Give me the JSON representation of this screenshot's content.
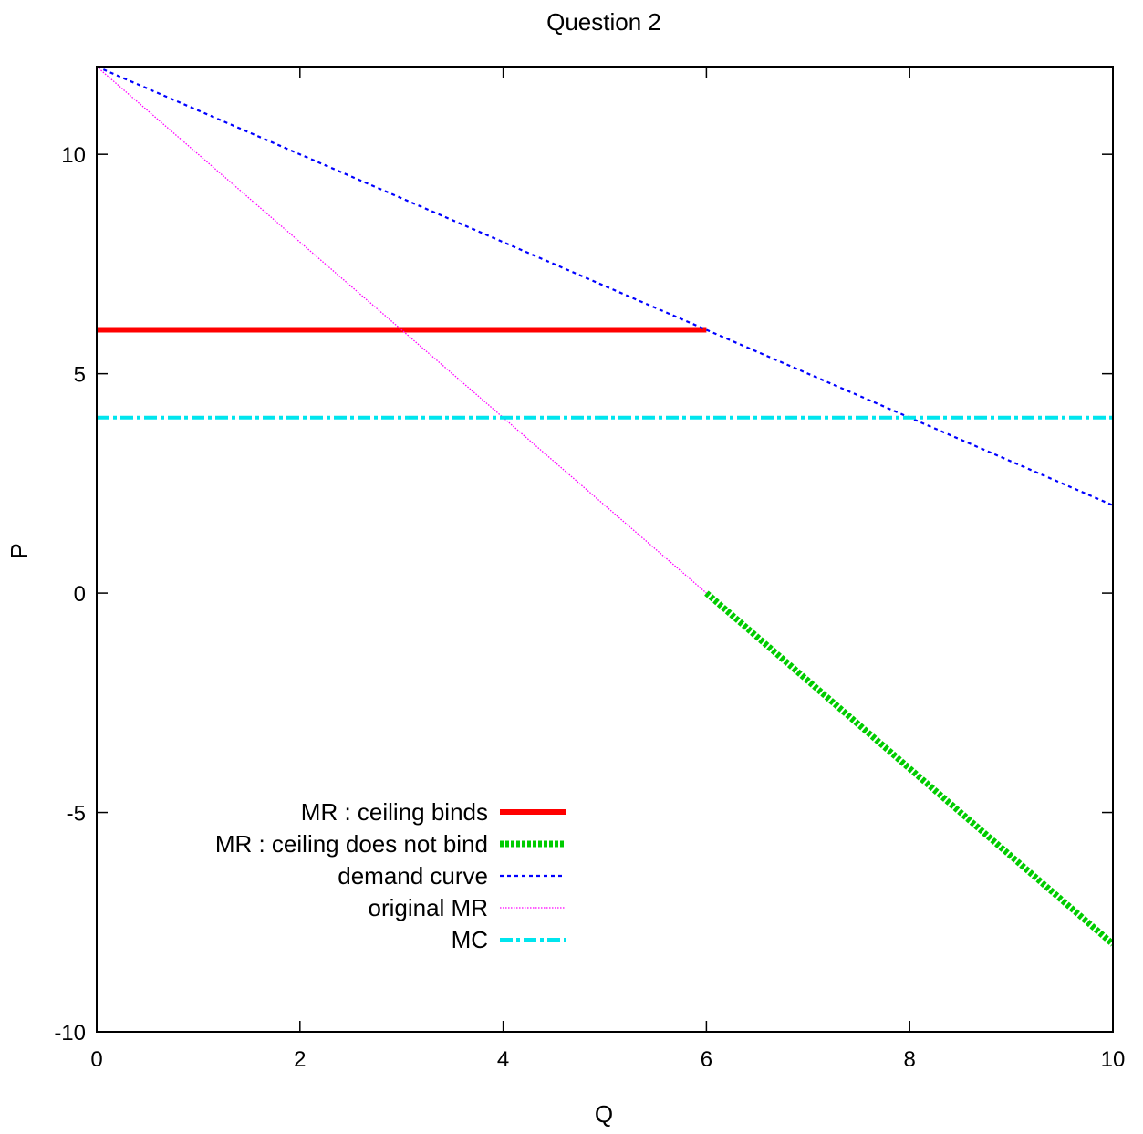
{
  "chart_data": {
    "type": "line",
    "title": "Question 2",
    "xlabel": "Q",
    "ylabel": "P",
    "xlim": [
      0,
      10
    ],
    "ylim": [
      -10,
      12
    ],
    "xticks": [
      0,
      2,
      4,
      6,
      8,
      10
    ],
    "yticks": [
      -10,
      -5,
      0,
      5,
      10
    ],
    "xtick_labels": [
      "0",
      "2",
      "4",
      "6",
      "8",
      "10"
    ],
    "ytick_labels": [
      "-10",
      "-5",
      "0",
      "5",
      "10"
    ],
    "grid": false,
    "legend_position": "bottom-left",
    "series": [
      {
        "name": "MR : ceiling binds",
        "x": [
          0,
          6
        ],
        "y": [
          6,
          6
        ],
        "color": "#ff0000",
        "style": "solid"
      },
      {
        "name": "MR : ceiling does not bind",
        "x": [
          6,
          10
        ],
        "y": [
          0,
          -8
        ],
        "color": "#00cc00",
        "style": "dashed-thick"
      },
      {
        "name": "demand curve",
        "x": [
          0,
          10
        ],
        "y": [
          12,
          2
        ],
        "color": "#0000ff",
        "style": "dotted"
      },
      {
        "name": "original MR",
        "x": [
          0,
          6
        ],
        "y": [
          12,
          0
        ],
        "color": "#ff00ff",
        "style": "fine-dotted"
      },
      {
        "name": "MC",
        "x": [
          0,
          10
        ],
        "y": [
          4,
          4
        ],
        "color": "#00e5ee",
        "style": "dash-dot"
      }
    ]
  }
}
